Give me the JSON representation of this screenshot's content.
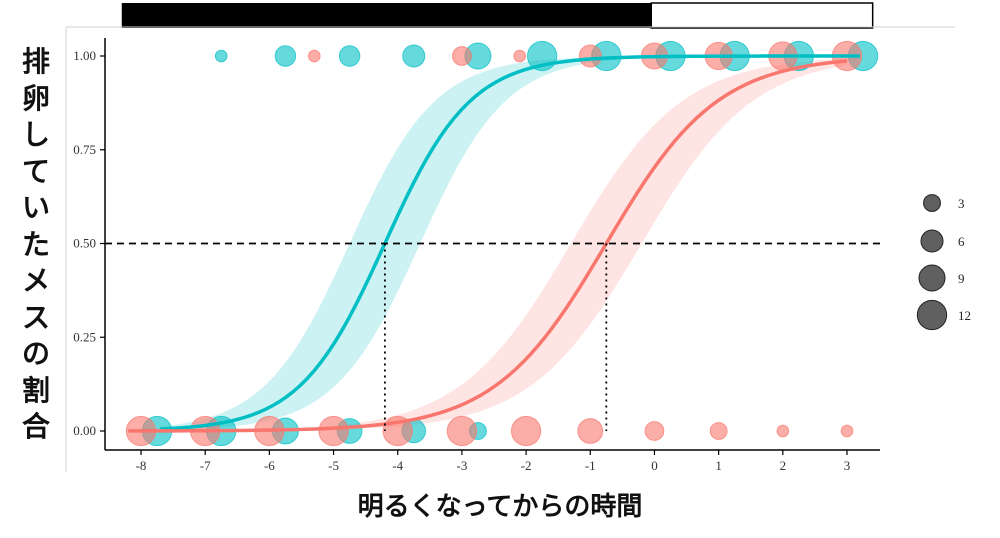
{
  "chart_data": {
    "type": "scatter",
    "title": "",
    "xlabel": "明るくなってからの時間",
    "ylabel": "排卵していたメスの割合",
    "xlim": [
      -8.2,
      3.5
    ],
    "ylim": [
      -0.05,
      1.05
    ],
    "xticks": [
      -8,
      -7,
      -6,
      -5,
      -4,
      -3,
      -2,
      -1,
      0,
      1,
      2,
      3
    ],
    "xtick_labels": [
      "-8",
      "-7",
      "-6",
      "-5",
      "-4",
      "-3",
      "-2",
      "-1",
      "0",
      "1",
      "2",
      "3"
    ],
    "yticks": [
      0,
      0.25,
      0.5,
      0.75,
      1.0
    ],
    "ytick_labels": [
      "0.00",
      "0.25",
      "0.50",
      "0.75",
      "1.00"
    ],
    "light_bar": {
      "dark_start": -8.3,
      "dark_end": -0.05,
      "light_end": 3.4
    },
    "reference_line": {
      "y": 0.5,
      "style": "dashed"
    },
    "crossing_lines": [
      {
        "x": -4.2,
        "y": 0.5
      },
      {
        "x": -0.75,
        "y": 0.5
      }
    ],
    "series": [
      {
        "name": "cyan",
        "color": "#00bfc4",
        "curve": {
          "x0": -4.2,
          "k": 1.5,
          "x_range": [
            -7.7,
            3.2
          ],
          "ci_width": 0.55
        },
        "points_y1": [
          {
            "x": -6.75,
            "size": 1
          },
          {
            "x": -5.75,
            "size": 5
          },
          {
            "x": -4.75,
            "size": 5
          },
          {
            "x": -3.75,
            "size": 6
          },
          {
            "x": -2.75,
            "size": 9
          },
          {
            "x": -1.75,
            "size": 12
          },
          {
            "x": -0.75,
            "size": 12
          },
          {
            "x": 0.25,
            "size": 12
          },
          {
            "x": 1.25,
            "size": 12
          },
          {
            "x": 2.25,
            "size": 12
          },
          {
            "x": 3.25,
            "size": 12
          }
        ],
        "points_y0": [
          {
            "x": -7.75,
            "size": 12
          },
          {
            "x": -6.75,
            "size": 12
          },
          {
            "x": -5.75,
            "size": 9
          },
          {
            "x": -4.75,
            "size": 8
          },
          {
            "x": -3.75,
            "size": 7
          },
          {
            "x": -2.75,
            "size": 3
          }
        ]
      },
      {
        "name": "salmon",
        "color": "#f8766d",
        "curve": {
          "x0": -0.75,
          "k": 1.15,
          "x_range": [
            -8.2,
            3.0
          ],
          "ci_width": 0.55
        },
        "points_y1": [
          {
            "x": -5.3,
            "size": 1
          },
          {
            "x": -3.0,
            "size": 4
          },
          {
            "x": -2.1,
            "size": 1
          },
          {
            "x": -1.0,
            "size": 6
          },
          {
            "x": 0.0,
            "size": 9
          },
          {
            "x": 1.0,
            "size": 10
          },
          {
            "x": 2.0,
            "size": 11
          },
          {
            "x": 3.0,
            "size": 12
          }
        ],
        "points_y0": [
          {
            "x": -8.0,
            "size": 12
          },
          {
            "x": -7.0,
            "size": 12
          },
          {
            "x": -6.0,
            "size": 12
          },
          {
            "x": -5.0,
            "size": 12
          },
          {
            "x": -4.0,
            "size": 12
          },
          {
            "x": -3.0,
            "size": 12
          },
          {
            "x": -2.0,
            "size": 12
          },
          {
            "x": -1.0,
            "size": 8
          },
          {
            "x": 0.0,
            "size": 4
          },
          {
            "x": 1.0,
            "size": 3
          },
          {
            "x": 2.0,
            "size": 1
          },
          {
            "x": 3.0,
            "size": 1
          }
        ]
      }
    ],
    "size_legend": {
      "values": [
        3,
        6,
        9,
        12
      ],
      "labels": [
        "3",
        "6",
        "9",
        "12"
      ],
      "color": "#444444"
    }
  }
}
